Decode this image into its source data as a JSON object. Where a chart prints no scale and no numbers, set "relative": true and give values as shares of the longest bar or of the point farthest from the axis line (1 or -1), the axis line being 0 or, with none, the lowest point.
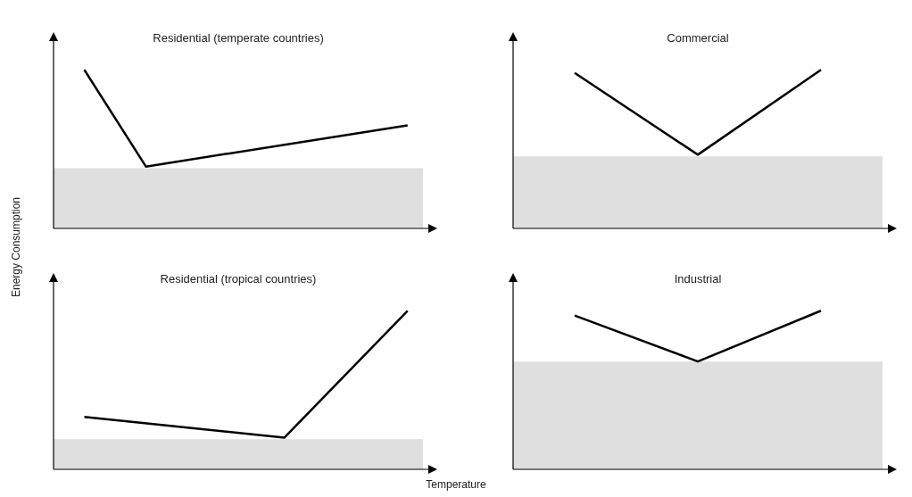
{
  "chart_data": [
    {
      "type": "line",
      "title": "Residential (temperate countries)",
      "ylabel": "Energy Consumption",
      "relative": true,
      "categories": [
        null,
        null,
        null,
        null,
        null,
        null,
        null,
        null,
        null,
        null,
        null,
        null,
        null,
        null,
        null,
        null,
        null,
        null,
        null,
        null,
        null,
        null,
        null,
        null,
        null
      ],
      "series": [
        {
          "color": "#000000",
          "values": [
            null,
            null,
            1,
            null,
            null,
            null,
            0.39,
            null,
            null,
            null,
            null,
            null,
            null,
            null,
            null,
            null,
            null,
            null,
            null,
            null,
            null,
            null,
            null,
            0.65,
            null
          ]
        }
      ],
      "bands": [
        {
          "axis": "y",
          "from": 0,
          "to": 0.38,
          "color": "#e0dfe0"
        }
      ]
    },
    {
      "type": "line",
      "title": "Commercial",
      "relative": true,
      "categories": [
        null,
        null,
        null,
        null,
        null,
        null,
        null,
        null,
        null,
        null,
        null,
        null,
        null,
        null,
        null,
        null,
        null,
        null,
        null,
        null,
        null,
        null,
        null,
        null,
        null
      ],
      "series": [
        {
          "color": "#000000",
          "values": [
            null,
            null,
            null,
            null,
            0.98,
            null,
            null,
            null,
            null,
            null,
            null,
            null,
            0.465,
            null,
            null,
            null,
            null,
            null,
            null,
            null,
            1,
            null,
            null,
            null,
            null
          ]
        }
      ],
      "bands": [
        {
          "axis": "y",
          "from": 0,
          "to": 0.455,
          "color": "#e0dfe0"
        }
      ]
    },
    {
      "type": "line",
      "title": "Residential (tropical countries)",
      "xlabel": "Temperature",
      "relative": true,
      "categories": [
        null,
        null,
        null,
        null,
        null,
        null,
        null,
        null,
        null,
        null,
        null,
        null,
        null,
        null,
        null,
        null,
        null,
        null,
        null,
        null,
        null,
        null,
        null,
        null,
        null
      ],
      "series": [
        {
          "color": "#000000",
          "values": [
            null,
            null,
            0.33,
            null,
            null,
            null,
            null,
            null,
            null,
            null,
            null,
            null,
            null,
            null,
            null,
            0.2,
            null,
            null,
            null,
            null,
            null,
            null,
            null,
            1,
            null
          ]
        }
      ],
      "bands": [
        {
          "axis": "y",
          "from": 0,
          "to": 0.19,
          "color": "#e0dfe0"
        }
      ]
    },
    {
      "type": "line",
      "title": "Industrial",
      "relative": true,
      "categories": [
        null,
        null,
        null,
        null,
        null,
        null,
        null,
        null,
        null,
        null,
        null,
        null,
        null,
        null,
        null,
        null,
        null,
        null,
        null,
        null,
        null,
        null,
        null,
        null,
        null
      ],
      "series": [
        {
          "color": "#000000",
          "values": [
            null,
            null,
            null,
            null,
            0.97,
            null,
            null,
            null,
            null,
            null,
            null,
            null,
            0.68,
            null,
            null,
            null,
            null,
            null,
            null,
            null,
            1,
            null,
            null,
            null,
            null
          ]
        }
      ],
      "bands": [
        {
          "axis": "y",
          "from": 0,
          "to": 0.68,
          "color": "#e0dfe0"
        }
      ]
    }
  ]
}
